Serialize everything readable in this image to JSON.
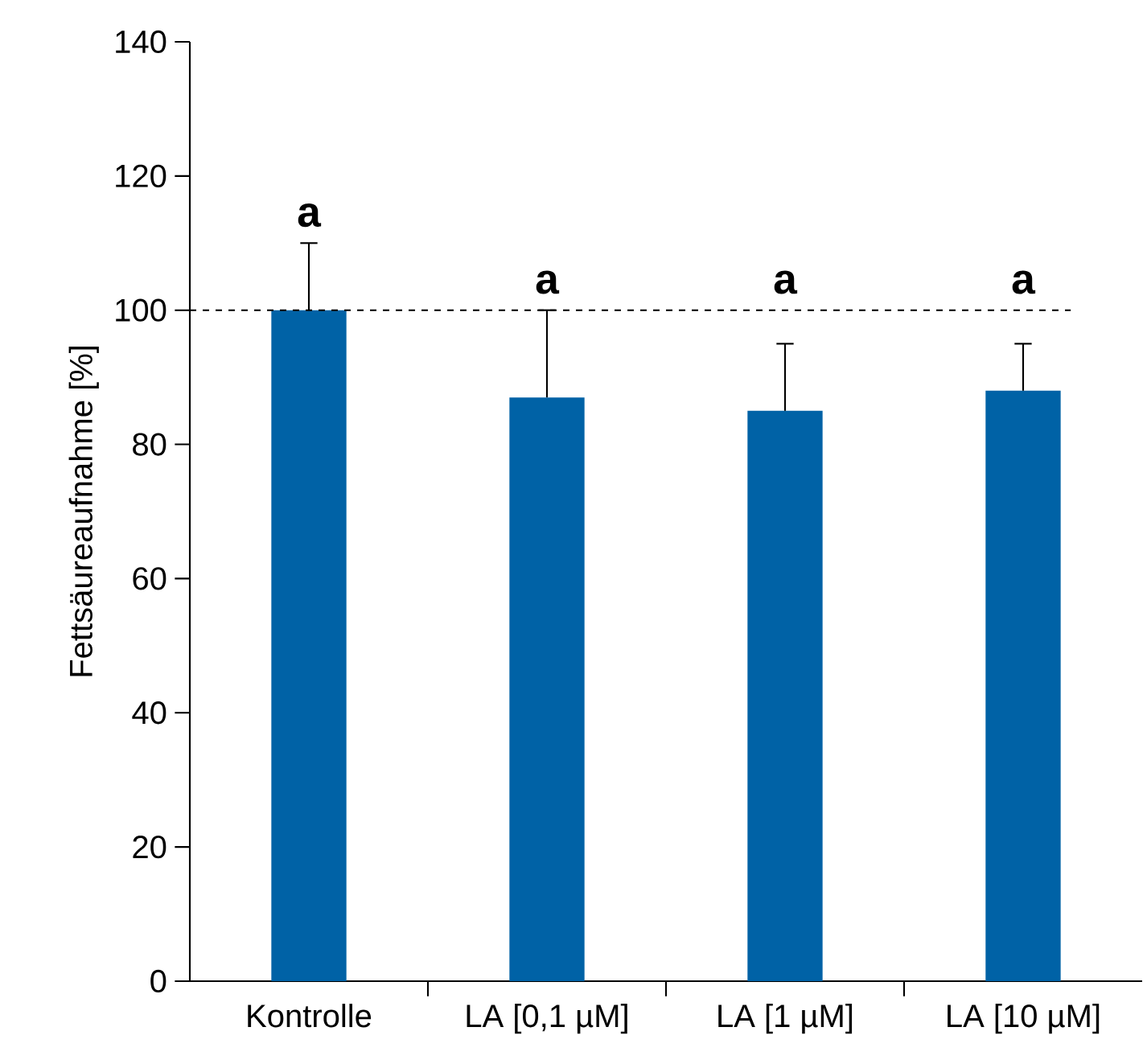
{
  "chart_data": {
    "type": "bar",
    "ylabel": "Fettsäureaufnahme [%]",
    "categories": [
      "Kontrolle",
      "LA [0,1 µM]",
      "LA [1 µM]",
      "LA [10 µM]"
    ],
    "values": [
      100,
      87,
      85,
      88
    ],
    "errors": [
      [
        100,
        110
      ],
      [
        87,
        100
      ],
      [
        85,
        95
      ],
      [
        88,
        95
      ]
    ],
    "color": "#0062a6",
    "ylim": [
      0,
      140
    ],
    "yticks": [
      0,
      20,
      40,
      60,
      80,
      100,
      120,
      140
    ],
    "ref_lines": [
      {
        "axis": "y",
        "value": 100,
        "color": "#000000",
        "line_style": "dashed"
      }
    ],
    "annotations": [
      "a",
      "a",
      "a",
      "a"
    ]
  }
}
